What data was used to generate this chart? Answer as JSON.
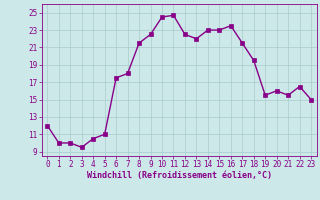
{
  "x": [
    0,
    1,
    2,
    3,
    4,
    5,
    6,
    7,
    8,
    9,
    10,
    11,
    12,
    13,
    14,
    15,
    16,
    17,
    18,
    19,
    20,
    21,
    22,
    23
  ],
  "y": [
    12,
    10,
    10,
    9.5,
    10.5,
    11,
    17.5,
    18,
    21.5,
    22.5,
    24.5,
    24.7,
    22.5,
    22,
    23,
    23,
    23.5,
    21.5,
    19.5,
    15.5,
    16,
    15.5,
    16.5,
    15
  ],
  "line_color": "#880088",
  "marker_color": "#880088",
  "bg_color": "#cce8e8",
  "grid_color": "#aacccc",
  "xlabel": "Windchill (Refroidissement éolien,°C)",
  "xlim": [
    -0.5,
    23.5
  ],
  "ylim": [
    8.5,
    26
  ],
  "yticks": [
    9,
    11,
    13,
    15,
    17,
    19,
    21,
    23,
    25
  ],
  "xticks": [
    0,
    1,
    2,
    3,
    4,
    5,
    6,
    7,
    8,
    9,
    10,
    11,
    12,
    13,
    14,
    15,
    16,
    17,
    18,
    19,
    20,
    21,
    22,
    23
  ],
  "marker_size": 2.5,
  "line_width": 1.0,
  "tick_fontsize": 5.5,
  "xlabel_fontsize": 6.0
}
